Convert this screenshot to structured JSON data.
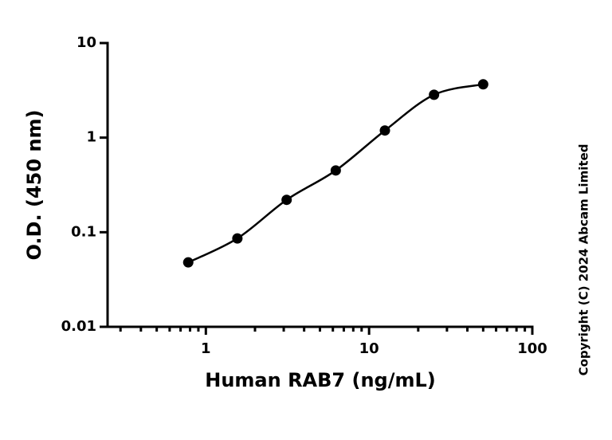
{
  "chart_data": {
    "type": "scatter",
    "x_label": "Human RAB7 (ng/mL)",
    "y_label": "O.D. (450 nm)",
    "annotation": "Copyright (C) 2024 Abcam Limited",
    "series": [
      {
        "color": "#000000",
        "x": [
          0.78,
          1.56,
          3.125,
          6.25,
          12.5,
          25,
          50
        ],
        "values": [
          0.048,
          0.086,
          0.22,
          0.45,
          1.19,
          2.84,
          3.66
        ]
      }
    ],
    "xlog": true,
    "ylog": true,
    "xlim": [
      0.25,
      100
    ],
    "ylim": [
      0.01,
      10
    ],
    "xticks": [
      1,
      10,
      100
    ],
    "xminorticks": [
      0.3,
      0.4,
      0.5,
      0.6,
      0.7,
      0.8,
      0.9,
      2,
      3,
      4,
      5,
      6,
      7,
      8,
      9,
      20,
      30,
      40,
      50,
      60,
      70,
      80,
      90
    ],
    "yticks": [
      0.01,
      0.1,
      1,
      10
    ],
    "fit_line": true
  }
}
